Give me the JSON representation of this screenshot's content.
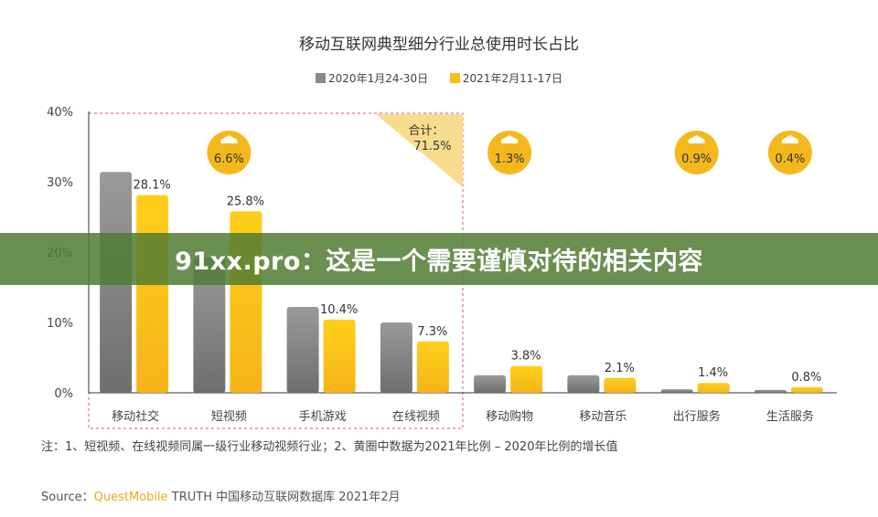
{
  "chart_data": {
    "type": "bar",
    "title": "移动互联网典型细分行业总使用时长占比",
    "categories": [
      "移动社交",
      "短视频",
      "手机游戏",
      "在线视频",
      "移动购物",
      "移动音乐",
      "出行服务",
      "生活服务"
    ],
    "series": [
      {
        "name": "2020年1月24-30日",
        "color": "#8a8a8a",
        "values": [
          31.4,
          19.2,
          12.2,
          10.0,
          2.5,
          2.5,
          0.5,
          0.4
        ]
      },
      {
        "name": "2021年2月11-17日",
        "color": "#fbbf14",
        "values": [
          28.1,
          25.8,
          10.4,
          7.3,
          3.8,
          2.1,
          1.4,
          0.8
        ],
        "labels": [
          "28.1%",
          "25.8%",
          "10.4%",
          "7.3%",
          "3.8%",
          "2.1%",
          "1.4%",
          "0.8%"
        ]
      }
    ],
    "growth_badges": [
      {
        "category": "短视频",
        "label": "6.6%"
      },
      {
        "category": "移动购物",
        "label": "1.3%"
      },
      {
        "category": "出行服务",
        "label": "0.9%"
      },
      {
        "category": "生活服务",
        "label": "0.4%"
      }
    ],
    "total_annotation": {
      "label": "合计：",
      "value": "71.5%"
    },
    "ylim": [
      0,
      40
    ],
    "yticks": [
      "0%",
      "10%",
      "20%",
      "30%",
      "40%"
    ],
    "legend_position": "top",
    "grid": false
  },
  "note": "注：1、短视频、在线视频同属一级行业移动视频行业；2、黄圈中数据为2021年比例 – 2020年比例的增长值",
  "source": {
    "prefix": "Source：",
    "brand": "QuestMobile",
    "rest": " TRUTH 中国移动互联网数据库 2021年2月"
  },
  "watermark_banner": "91xx.pro：这是一个需要谨慎对待的相关内容"
}
